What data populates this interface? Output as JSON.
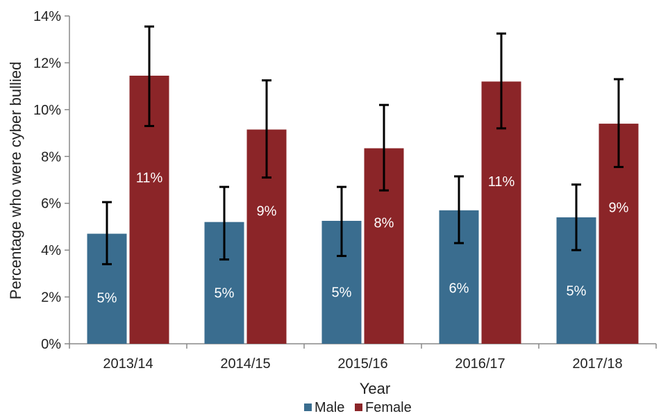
{
  "chart_data": {
    "type": "bar",
    "categories": [
      "2013/14",
      "2014/15",
      "2015/16",
      "2016/17",
      "2017/18"
    ],
    "series": [
      {
        "name": "Male",
        "color": "#3a6d8f",
        "values": [
          4.7,
          5.2,
          5.25,
          5.7,
          5.4
        ],
        "error_low": [
          3.4,
          3.6,
          3.75,
          4.3,
          4.0
        ],
        "error_high": [
          6.05,
          6.7,
          6.7,
          7.15,
          6.8
        ],
        "labels": [
          "5%",
          "5%",
          "5%",
          "6%",
          "5%"
        ]
      },
      {
        "name": "Female",
        "color": "#8b2528",
        "values": [
          11.45,
          9.15,
          8.35,
          11.2,
          9.4
        ],
        "error_low": [
          9.3,
          7.1,
          6.55,
          9.2,
          7.55
        ],
        "error_high": [
          13.55,
          11.25,
          10.2,
          13.25,
          11.3
        ],
        "labels": [
          "11%",
          "9%",
          "8%",
          "11%",
          "9%"
        ]
      }
    ],
    "ylim": [
      0,
      14
    ],
    "yticks": [
      0,
      2,
      4,
      6,
      8,
      10,
      12,
      14
    ],
    "ytick_labels": [
      "0%",
      "2%",
      "4%",
      "6%",
      "8%",
      "10%",
      "12%",
      "14%"
    ],
    "xlabel": "Year",
    "ylabel": "Percentage who were cyber bullied",
    "legend_position": "bottom-center",
    "grid": false
  }
}
